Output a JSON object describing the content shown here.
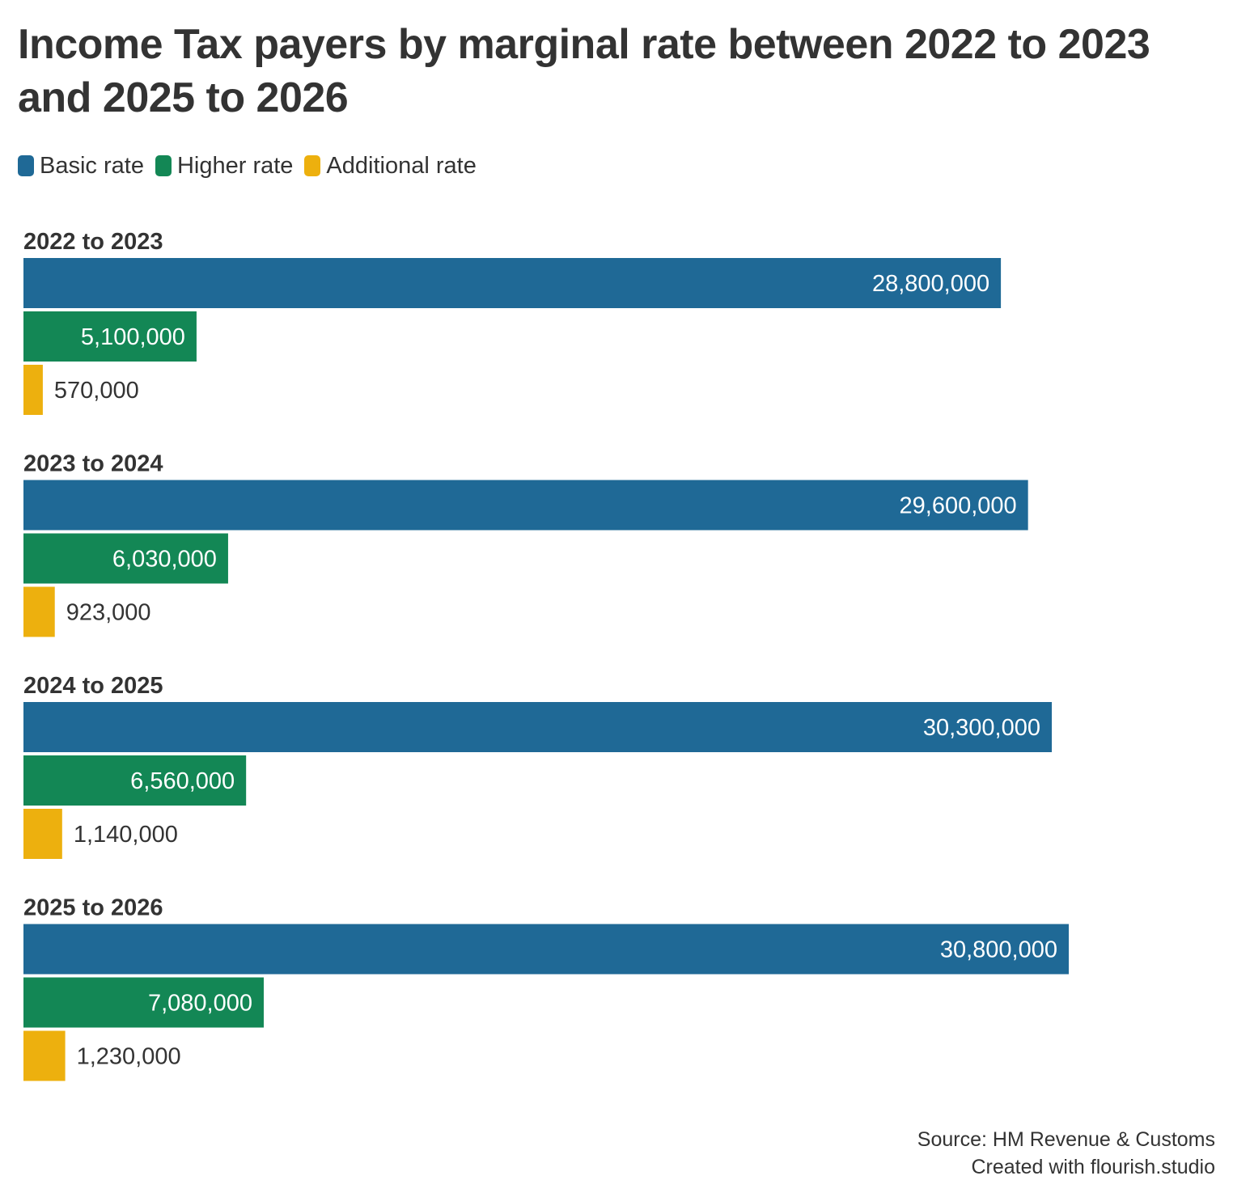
{
  "chart_data": {
    "type": "bar",
    "orientation": "horizontal",
    "title": "Income Tax payers by marginal rate between 2022 to 2023 and 2025 to 2026",
    "categories": [
      "2022 to 2023",
      "2023 to 2024",
      "2024 to 2025",
      "2025 to 2026"
    ],
    "series": [
      {
        "name": "Basic rate",
        "color": "#1f6996",
        "values": [
          28800000,
          29600000,
          30300000,
          30800000
        ],
        "labels": [
          "28,800,000",
          "29,600,000",
          "30,300,000",
          "30,800,000"
        ]
      },
      {
        "name": "Higher rate",
        "color": "#138755",
        "values": [
          5100000,
          6030000,
          6560000,
          7080000
        ],
        "labels": [
          "5,100,000",
          "6,030,000",
          "6,560,000",
          "7,080,000"
        ]
      },
      {
        "name": "Additional rate",
        "color": "#edb00e",
        "values": [
          570000,
          923000,
          1140000,
          1230000
        ],
        "labels": [
          "570,000",
          "923,000",
          "1,140,000",
          "1,230,000"
        ]
      }
    ],
    "xlim": [
      0,
      30800000
    ],
    "grid": false,
    "legend_position": "top-left",
    "source": "Source: HM Revenue & Customs",
    "credit": "Created with flourish.studio"
  }
}
